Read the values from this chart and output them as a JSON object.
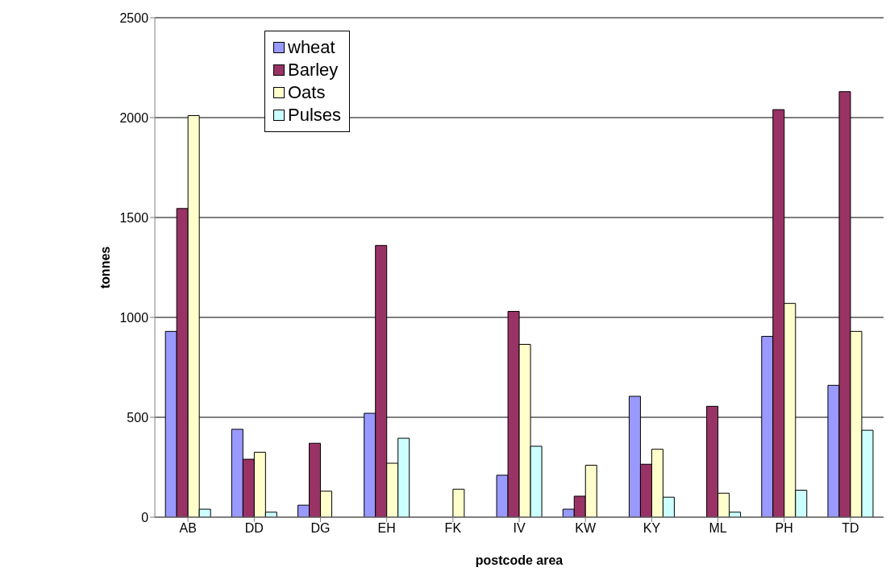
{
  "chart_data": {
    "type": "bar",
    "xlabel": "postcode area",
    "ylabel": "tonnes",
    "categories": [
      "AB",
      "DD",
      "DG",
      "EH",
      "FK",
      "IV",
      "KW",
      "KY",
      "ML",
      "PH",
      "TD"
    ],
    "series": [
      {
        "name": "wheat",
        "color": "#9999ff",
        "values": [
          930,
          440,
          60,
          520,
          0,
          210,
          40,
          605,
          0,
          905,
          660
        ]
      },
      {
        "name": "Barley",
        "color": "#993366",
        "values": [
          1545,
          290,
          370,
          1360,
          0,
          1030,
          105,
          265,
          555,
          2040,
          2130
        ]
      },
      {
        "name": "Oats",
        "color": "#ffffcc",
        "values": [
          2010,
          325,
          130,
          270,
          140,
          865,
          260,
          340,
          120,
          1070,
          930
        ]
      },
      {
        "name": "Pulses",
        "color": "#ccffff",
        "values": [
          40,
          25,
          0,
          395,
          0,
          355,
          0,
          100,
          25,
          135,
          435
        ]
      }
    ],
    "ylim": [
      0,
      2500
    ],
    "yticks": [
      0,
      500,
      1000,
      1500,
      2000,
      2500
    ],
    "grid": "y",
    "legend": "top left"
  }
}
